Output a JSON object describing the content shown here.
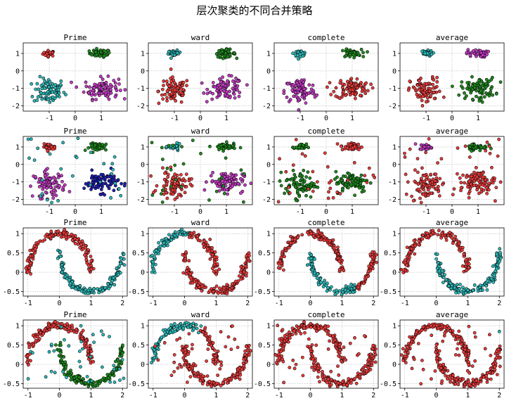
{
  "figure": {
    "title": "层次聚类的不同合并策略"
  },
  "colors": {
    "red": "#e83a3a",
    "cyan": "#2bb7b7",
    "green": "#1e8a1e",
    "magenta": "#c43ac4",
    "blue": "#1f1fb4"
  },
  "chart_data": [
    {
      "type": "scatter",
      "title": "Prime",
      "dataset": "blobs",
      "noise": false,
      "xlim": [
        -2.0,
        2.0
      ],
      "ylim": [
        -2.3,
        1.6
      ],
      "xticks": [
        -1,
        0,
        1
      ],
      "yticks": [
        -2,
        -1,
        0,
        1
      ],
      "grid": true,
      "clusters": [
        {
          "color": "red",
          "center": [
            -1.0,
            1.0
          ],
          "spread": [
            0.12,
            0.08
          ],
          "n": 30
        },
        {
          "color": "green",
          "center": [
            0.95,
            1.0
          ],
          "spread": [
            0.2,
            0.11
          ],
          "n": 45
        },
        {
          "color": "cyan",
          "center": [
            -1.0,
            -1.15
          ],
          "spread": [
            0.3,
            0.38
          ],
          "n": 85
        },
        {
          "color": "magenta",
          "center": [
            1.0,
            -1.0
          ],
          "spread": [
            0.33,
            0.3
          ],
          "n": 90
        }
      ]
    },
    {
      "type": "scatter",
      "title": "ward",
      "dataset": "blobs",
      "noise": false,
      "xlim": [
        -2.0,
        2.0
      ],
      "ylim": [
        -2.3,
        1.6
      ],
      "xticks": [
        -1,
        0,
        1
      ],
      "yticks": [
        -2,
        -1,
        0,
        1
      ],
      "grid": true,
      "clusters": [
        {
          "color": "cyan",
          "center": [
            -1.0,
            1.0
          ],
          "spread": [
            0.12,
            0.08
          ],
          "n": 30
        },
        {
          "color": "green",
          "center": [
            0.95,
            1.0
          ],
          "spread": [
            0.2,
            0.11
          ],
          "n": 45
        },
        {
          "color": "red",
          "center": [
            -1.0,
            -1.15
          ],
          "spread": [
            0.3,
            0.38
          ],
          "n": 85
        },
        {
          "color": "magenta",
          "center": [
            1.0,
            -1.0
          ],
          "spread": [
            0.33,
            0.3
          ],
          "n": 90
        }
      ]
    },
    {
      "type": "scatter",
      "title": "complete",
      "dataset": "blobs",
      "noise": false,
      "xlim": [
        -2.0,
        2.0
      ],
      "ylim": [
        -2.3,
        1.6
      ],
      "xticks": [
        -1,
        0,
        1
      ],
      "yticks": [
        -2,
        -1,
        0,
        1
      ],
      "grid": true,
      "clusters": [
        {
          "color": "cyan",
          "center": [
            -1.0,
            1.0
          ],
          "spread": [
            0.12,
            0.08
          ],
          "n": 30
        },
        {
          "color": "green",
          "center": [
            0.95,
            1.0
          ],
          "spread": [
            0.2,
            0.11
          ],
          "n": 45
        },
        {
          "color": "magenta",
          "center": [
            -1.0,
            -1.15
          ],
          "spread": [
            0.3,
            0.38
          ],
          "n": 85
        },
        {
          "color": "red",
          "center": [
            1.0,
            -1.0
          ],
          "spread": [
            0.33,
            0.3
          ],
          "n": 90
        }
      ]
    },
    {
      "type": "scatter",
      "title": "average",
      "dataset": "blobs",
      "noise": false,
      "xlim": [
        -2.0,
        2.0
      ],
      "ylim": [
        -2.3,
        1.6
      ],
      "xticks": [
        -1,
        0,
        1
      ],
      "yticks": [
        -2,
        -1,
        0,
        1
      ],
      "grid": true,
      "clusters": [
        {
          "color": "cyan",
          "center": [
            -1.0,
            1.0
          ],
          "spread": [
            0.12,
            0.08
          ],
          "n": 30
        },
        {
          "color": "magenta",
          "center": [
            0.95,
            1.0
          ],
          "spread": [
            0.2,
            0.11
          ],
          "n": 45
        },
        {
          "color": "red",
          "center": [
            -1.0,
            -1.15
          ],
          "spread": [
            0.3,
            0.38
          ],
          "n": 85
        },
        {
          "color": "green",
          "center": [
            1.0,
            -1.0
          ],
          "spread": [
            0.33,
            0.3
          ],
          "n": 90
        }
      ]
    },
    {
      "type": "scatter",
      "title": "Prime",
      "dataset": "blobs",
      "noise": true,
      "xlim": [
        -2.0,
        2.0
      ],
      "ylim": [
        -2.3,
        1.6
      ],
      "xticks": [
        -1,
        0,
        1
      ],
      "yticks": [
        -2,
        -1,
        0,
        1
      ],
      "grid": true,
      "clusters": [
        {
          "color": "red",
          "center": [
            -1.0,
            1.0
          ],
          "spread": [
            0.12,
            0.08
          ],
          "n": 30
        },
        {
          "color": "green",
          "center": [
            0.95,
            1.0
          ],
          "spread": [
            0.2,
            0.11
          ],
          "n": 45
        },
        {
          "color": "magenta",
          "center": [
            -1.0,
            -1.15
          ],
          "spread": [
            0.3,
            0.38
          ],
          "n": 85
        },
        {
          "color": "blue",
          "center": [
            1.0,
            -1.0
          ],
          "spread": [
            0.33,
            0.3
          ],
          "n": 90
        },
        {
          "color": "cyan",
          "uniform": true,
          "n": 30
        }
      ]
    },
    {
      "type": "scatter",
      "title": "ward",
      "dataset": "blobs",
      "noise": true,
      "xlim": [
        -2.0,
        2.0
      ],
      "ylim": [
        -2.3,
        1.6
      ],
      "xticks": [
        -1,
        0,
        1
      ],
      "yticks": [
        -2,
        -1,
        0,
        1
      ],
      "grid": true,
      "clusters": [
        {
          "color": "cyan",
          "center": [
            -1.0,
            1.0
          ],
          "spread": [
            0.12,
            0.08
          ],
          "n": 30
        },
        {
          "color": "green",
          "center": [
            0.95,
            1.0
          ],
          "spread": [
            0.2,
            0.11
          ],
          "n": 45
        },
        {
          "color": "red",
          "center": [
            -1.0,
            -1.15
          ],
          "spread": [
            0.3,
            0.38
          ],
          "n": 85
        },
        {
          "color": "magenta",
          "center": [
            1.0,
            -1.0
          ],
          "spread": [
            0.33,
            0.3
          ],
          "n": 90
        },
        {
          "color": "green",
          "uniform": true,
          "n": 30
        }
      ]
    },
    {
      "type": "scatter",
      "title": "complete",
      "dataset": "blobs",
      "noise": true,
      "xlim": [
        -2.0,
        2.0
      ],
      "ylim": [
        -2.3,
        1.6
      ],
      "xticks": [
        -1,
        0,
        1
      ],
      "yticks": [
        -2,
        -1,
        0,
        1
      ],
      "grid": true,
      "clusters": [
        {
          "color": "green",
          "center": [
            -1.0,
            1.0
          ],
          "spread": [
            0.12,
            0.08
          ],
          "n": 30
        },
        {
          "color": "red",
          "center": [
            0.95,
            1.0
          ],
          "spread": [
            0.2,
            0.11
          ],
          "n": 45
        },
        {
          "color": "green",
          "center": [
            -1.0,
            -1.15
          ],
          "spread": [
            0.3,
            0.38
          ],
          "n": 85
        },
        {
          "color": "green",
          "center": [
            1.0,
            -1.0
          ],
          "spread": [
            0.33,
            0.3
          ],
          "n": 90
        },
        {
          "color": "red",
          "uniform": true,
          "n": 30
        }
      ]
    },
    {
      "type": "scatter",
      "title": "average",
      "dataset": "blobs",
      "noise": true,
      "xlim": [
        -2.0,
        2.0
      ],
      "ylim": [
        -2.3,
        1.6
      ],
      "xticks": [
        -1,
        0,
        1
      ],
      "yticks": [
        -2,
        -1,
        0,
        1
      ],
      "grid": true,
      "clusters": [
        {
          "color": "magenta",
          "center": [
            -1.0,
            1.0
          ],
          "spread": [
            0.12,
            0.08
          ],
          "n": 30
        },
        {
          "color": "green",
          "center": [
            0.95,
            1.0
          ],
          "spread": [
            0.2,
            0.11
          ],
          "n": 45
        },
        {
          "color": "red",
          "center": [
            -1.0,
            -1.15
          ],
          "spread": [
            0.3,
            0.38
          ],
          "n": 85
        },
        {
          "color": "red",
          "center": [
            1.0,
            -1.0
          ],
          "spread": [
            0.33,
            0.3
          ],
          "n": 90
        },
        {
          "color": "red",
          "uniform": true,
          "n": 30
        }
      ]
    },
    {
      "type": "scatter",
      "title": "Prime",
      "dataset": "moons",
      "noise": false,
      "xlim": [
        -1.15,
        2.15
      ],
      "ylim": [
        -0.62,
        1.15
      ],
      "xticks": [
        -1,
        0,
        1,
        2
      ],
      "yticks": [
        -0.5,
        0.0,
        0.5,
        1.0
      ],
      "grid": true,
      "clusters": [
        {
          "color": "red",
          "moon": "upper",
          "n": 150
        },
        {
          "color": "cyan",
          "moon": "lower",
          "n": 150
        }
      ]
    },
    {
      "type": "scatter",
      "title": "ward",
      "dataset": "moons",
      "noise": false,
      "xlim": [
        -1.15,
        2.15
      ],
      "ylim": [
        -0.62,
        1.15
      ],
      "xticks": [
        -1,
        0,
        1,
        2
      ],
      "yticks": [
        -0.5,
        0.0,
        0.5,
        1.0
      ],
      "grid": true,
      "clusters": [
        {
          "color": "cyan",
          "moon": "upper",
          "range": [
            0.45,
            1.0
          ],
          "n": 85
        },
        {
          "color": "red",
          "moon": "upper",
          "range": [
            0.0,
            0.45
          ],
          "n": 65
        },
        {
          "color": "red",
          "moon": "lower",
          "n": 150
        }
      ]
    },
    {
      "type": "scatter",
      "title": "complete",
      "dataset": "moons",
      "noise": false,
      "xlim": [
        -1.15,
        2.15
      ],
      "ylim": [
        -0.62,
        1.15
      ],
      "xticks": [
        -1,
        0,
        1,
        2
      ],
      "yticks": [
        -0.5,
        0.0,
        0.5,
        1.0
      ],
      "grid": true,
      "clusters": [
        {
          "color": "red",
          "moon": "upper",
          "n": 150
        },
        {
          "color": "cyan",
          "moon": "lower",
          "range": [
            0.0,
            0.65
          ],
          "n": 95
        },
        {
          "color": "red",
          "moon": "lower",
          "range": [
            0.65,
            1.0
          ],
          "n": 55
        }
      ]
    },
    {
      "type": "scatter",
      "title": "average",
      "dataset": "moons",
      "noise": false,
      "xlim": [
        -1.15,
        2.15
      ],
      "ylim": [
        -0.62,
        1.15
      ],
      "xticks": [
        -1,
        0,
        1,
        2
      ],
      "yticks": [
        -0.5,
        0.0,
        0.5,
        1.0
      ],
      "grid": true,
      "clusters": [
        {
          "color": "red",
          "moon": "upper",
          "n": 150
        },
        {
          "color": "cyan",
          "moon": "lower",
          "n": 150
        }
      ]
    },
    {
      "type": "scatter",
      "title": "Prime",
      "dataset": "moons",
      "noise": true,
      "xlim": [
        -1.15,
        2.15
      ],
      "ylim": [
        -0.62,
        1.15
      ],
      "xticks": [
        -1,
        0,
        1,
        2
      ],
      "yticks": [
        -0.5,
        0.0,
        0.5,
        1.0
      ],
      "grid": true,
      "clusters": [
        {
          "color": "red",
          "moon": "upper",
          "n": 150
        },
        {
          "color": "green",
          "moon": "lower",
          "n": 150
        },
        {
          "color": "cyan",
          "uniform": true,
          "n": 40
        }
      ]
    },
    {
      "type": "scatter",
      "title": "ward",
      "dataset": "moons",
      "noise": true,
      "xlim": [
        -1.15,
        2.15
      ],
      "ylim": [
        -0.62,
        1.15
      ],
      "xticks": [
        -1,
        0,
        1,
        2
      ],
      "yticks": [
        -0.5,
        0.0,
        0.5,
        1.0
      ],
      "grid": true,
      "clusters": [
        {
          "color": "cyan",
          "moon": "upper",
          "range": [
            0.35,
            1.0
          ],
          "n": 100
        },
        {
          "color": "red",
          "moon": "upper",
          "range": [
            0.0,
            0.35
          ],
          "n": 50
        },
        {
          "color": "red",
          "moon": "lower",
          "n": 150
        },
        {
          "color": "red",
          "uniform": true,
          "n": 40
        }
      ]
    },
    {
      "type": "scatter",
      "title": "complete",
      "dataset": "moons",
      "noise": true,
      "xlim": [
        -1.15,
        2.15
      ],
      "ylim": [
        -0.62,
        1.15
      ],
      "xticks": [
        -1,
        0,
        1,
        2
      ],
      "yticks": [
        -0.5,
        0.0,
        0.5,
        1.0
      ],
      "grid": true,
      "clusters": [
        {
          "color": "red",
          "moon": "upper",
          "n": 150
        },
        {
          "color": "red",
          "moon": "lower",
          "n": 150
        },
        {
          "color": "red",
          "uniform": true,
          "n": 40
        }
      ]
    },
    {
      "type": "scatter",
      "title": "average",
      "dataset": "moons",
      "noise": true,
      "xlim": [
        -1.15,
        2.15
      ],
      "ylim": [
        -0.62,
        1.15
      ],
      "xticks": [
        -1,
        0,
        1,
        2
      ],
      "yticks": [
        -0.5,
        0.0,
        0.5,
        1.0
      ],
      "grid": true,
      "clusters": [
        {
          "color": "red",
          "moon": "upper",
          "n": 150
        },
        {
          "color": "red",
          "moon": "lower",
          "n": 150
        },
        {
          "color": "red",
          "uniform": true,
          "n": 40
        },
        {
          "color": "cyan",
          "point": [
            2.0,
            0.85
          ]
        }
      ]
    }
  ]
}
